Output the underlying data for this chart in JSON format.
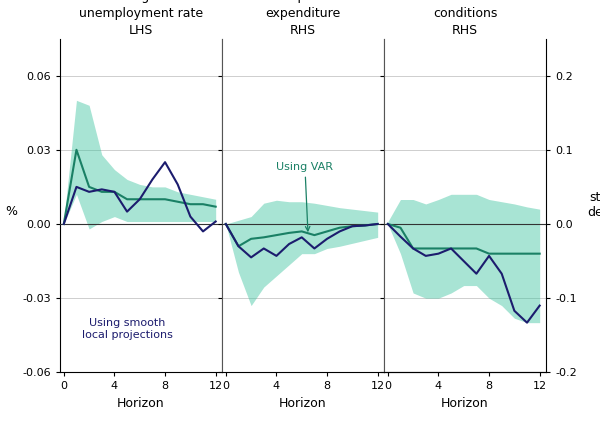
{
  "panel1_title": "Change in\nunemployment rate\nLHS",
  "panel2_title": "Capital\nexpenditure\nRHS",
  "panel3_title": "Business\nconditions\nRHS",
  "left_ylabel": "%",
  "right_ylabel": "std\ndev",
  "xlabel": "Horizon",
  "ylim": [
    -0.06,
    0.075
  ],
  "yticks_left": [
    -0.06,
    -0.03,
    0.0,
    0.03,
    0.06
  ],
  "yticks_right_vals": [
    -0.2,
    -0.1,
    0.0,
    0.1,
    0.2
  ],
  "yticks_right_labels": [
    "-0.2",
    "-0.1",
    "0.0",
    "0.1",
    "0.2"
  ],
  "xticks": [
    0,
    4,
    8,
    12
  ],
  "horizon": [
    0,
    1,
    2,
    3,
    4,
    5,
    6,
    7,
    8,
    9,
    10,
    11,
    12
  ],
  "p1_var_center": [
    0.0,
    0.03,
    0.015,
    0.013,
    0.013,
    0.01,
    0.01,
    0.01,
    0.01,
    0.009,
    0.008,
    0.008,
    0.007
  ],
  "p1_var_upper": [
    0.001,
    0.05,
    0.048,
    0.028,
    0.022,
    0.018,
    0.016,
    0.015,
    0.015,
    0.013,
    0.012,
    0.011,
    0.01
  ],
  "p1_var_lower": [
    0.0,
    0.012,
    -0.002,
    0.001,
    0.003,
    0.001,
    0.001,
    0.001,
    0.001,
    0.001,
    0.001,
    0.001,
    0.001
  ],
  "p1_slp": [
    0.0,
    0.015,
    0.013,
    0.014,
    0.013,
    0.005,
    0.01,
    0.018,
    0.025,
    0.016,
    0.003,
    -0.003,
    0.001
  ],
  "p2_var_center_rs": [
    0.0,
    -0.03,
    -0.02,
    -0.018,
    -0.015,
    -0.012,
    -0.01,
    -0.015,
    -0.01,
    -0.005,
    -0.003,
    -0.002,
    0.0
  ],
  "p2_var_upper_rs": [
    0.0,
    0.005,
    0.01,
    0.028,
    0.032,
    0.03,
    0.03,
    0.028,
    0.025,
    0.022,
    0.02,
    0.018,
    0.016
  ],
  "p2_var_lower_rs": [
    0.0,
    -0.065,
    -0.11,
    -0.085,
    -0.07,
    -0.055,
    -0.04,
    -0.04,
    -0.033,
    -0.03,
    -0.026,
    -0.022,
    -0.018
  ],
  "p2_slp_rs": [
    0.0,
    -0.03,
    -0.045,
    -0.033,
    -0.043,
    -0.027,
    -0.018,
    -0.033,
    -0.02,
    -0.01,
    -0.003,
    -0.002,
    0.0
  ],
  "p3_var_center_rs": [
    0.0,
    -0.005,
    -0.033,
    -0.033,
    -0.033,
    -0.033,
    -0.033,
    -0.033,
    -0.04,
    -0.04,
    -0.04,
    -0.04,
    -0.04
  ],
  "p3_var_upper_rs": [
    0.003,
    0.033,
    0.033,
    0.027,
    0.033,
    0.04,
    0.04,
    0.04,
    0.033,
    0.03,
    0.027,
    0.023,
    0.02
  ],
  "p3_var_lower_rs": [
    0.0,
    -0.04,
    -0.093,
    -0.1,
    -0.1,
    -0.093,
    -0.083,
    -0.083,
    -0.1,
    -0.11,
    -0.127,
    -0.133,
    -0.133
  ],
  "p3_slp_rs": [
    0.0,
    -0.017,
    -0.033,
    -0.043,
    -0.04,
    -0.033,
    -0.05,
    -0.067,
    -0.043,
    -0.067,
    -0.117,
    -0.133,
    -0.11
  ],
  "band_color": "#3EC4A0",
  "band_alpha": 0.45,
  "var_line_color": "#1A8065",
  "slp_line_color": "#1C1C6E",
  "grid_color": "#BBBBBB",
  "zero_line_color": "#333333",
  "divider_color": "#555555",
  "annotation_var_color": "#1A8065",
  "annotation_slp_color": "#1C1C6E",
  "bg_color": "#FFFFFF",
  "rs_to_ls": 0.3
}
